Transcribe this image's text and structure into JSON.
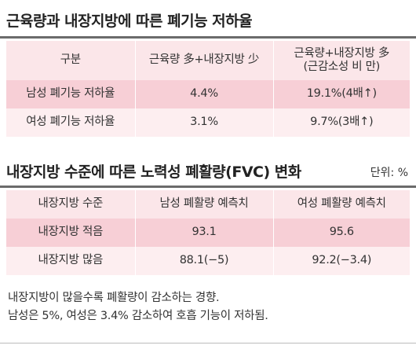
{
  "section1": {
    "title": "근육량과 내장지방에 따른 폐기능 저하율",
    "header": [
      "구분",
      "근육량 多+내장지방 少",
      "근육량+내장지방 多\n(근감소성 비 만)"
    ],
    "rows": [
      [
        "남성 폐기능 저하율",
        "4.4%",
        "19.1%(4배↑)"
      ],
      [
        "여성 폐기능 저하율",
        "3.1%",
        "9.7%(3배↑)"
      ]
    ]
  },
  "section2": {
    "title": "내장지방 수준에 따른 노력성 폐활량(FVC) 변화",
    "unit": "단위: %",
    "header": [
      "내장지방 수준",
      "남성 폐활량 예측치",
      "여성 폐활량 예측치"
    ],
    "rows": [
      [
        "내장지방 적음",
        "93.1",
        "95.6"
      ],
      [
        "내장지방 많음",
        "88.1(−5)",
        "92.2(−3.4)"
      ]
    ]
  },
  "notes": [
    "내장지방이 많을수록 폐활량이 감소하는 경향.",
    "남성은 5%, 여성은 3.4% 감소하여 호흡 기능이 저하됨."
  ]
}
